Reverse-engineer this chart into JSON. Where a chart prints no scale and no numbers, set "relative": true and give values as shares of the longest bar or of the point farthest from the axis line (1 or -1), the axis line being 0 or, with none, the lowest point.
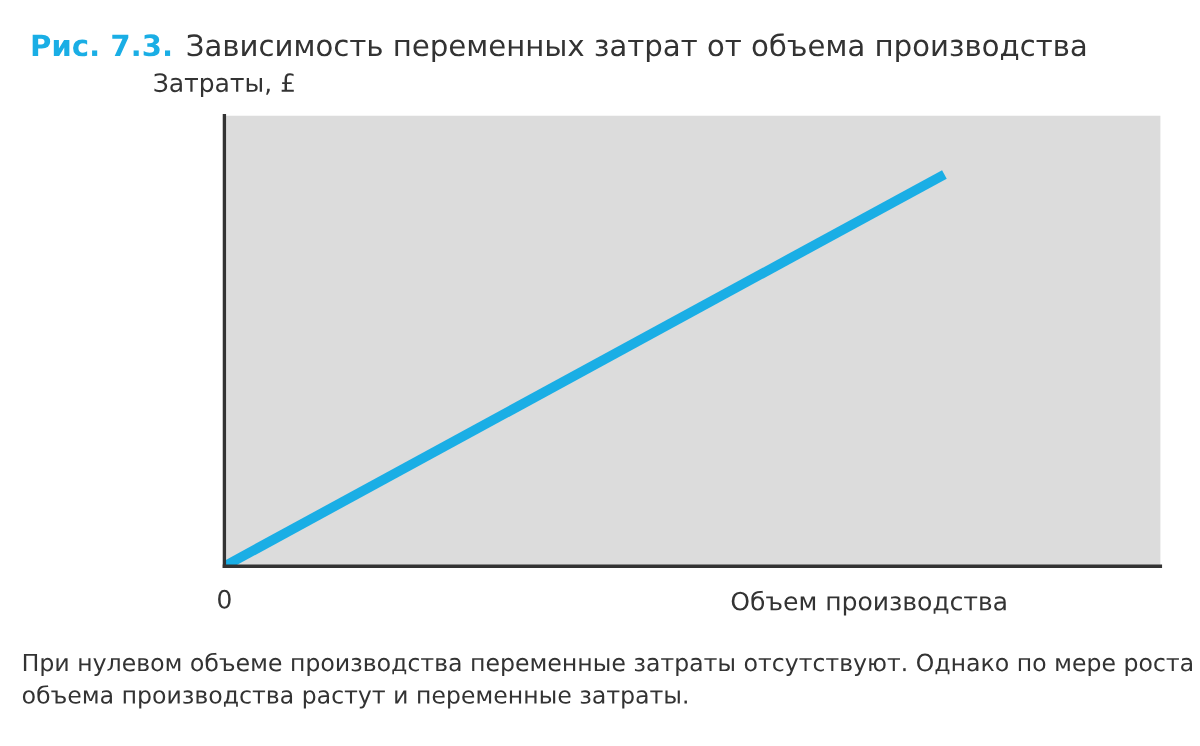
{
  "chart_data": {
    "type": "line",
    "title": "Рис. 7.3.  Зависимость переменных затрат от объема производства",
    "xlabel": "Объем производства",
    "ylabel": "Затраты, £",
    "categories": [
      null,
      null
    ],
    "relative": true,
    "series": [
      {
        "color": "#1aaee5",
        "values": [
          0,
          1
        ]
      }
    ],
    "annotations": [
      "0",
      "При нулевом объеме производства переменные затраты отсутствуют. Однако по мере роста объема производства растут и переменные затраты."
    ],
    "grid": false,
    "legend": false
  }
}
